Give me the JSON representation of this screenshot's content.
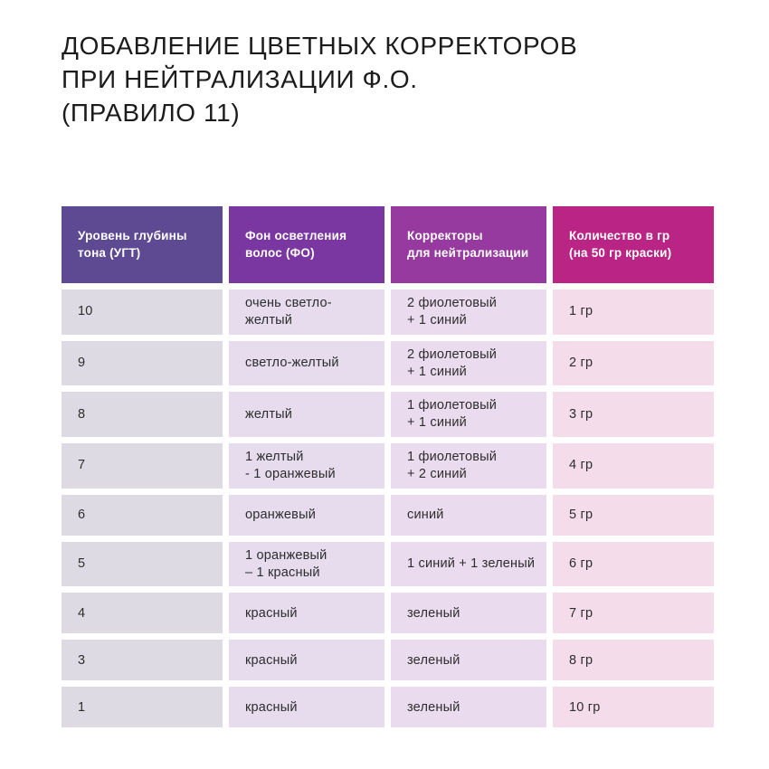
{
  "title": {
    "lines": [
      "ДОБАВЛЕНИЕ ЦВЕТНЫХ КОРРЕКТОРОВ",
      "ПРИ НЕЙТРАЛИЗАЦИИ Ф.О.",
      "(ПРАВИЛО 11)"
    ]
  },
  "table": {
    "columns": [
      {
        "label": "Уровень глубины\nтона (УГТ)",
        "header_bg": "#5d4a93",
        "cell_bg": "#dedae3"
      },
      {
        "label": "Фон осветления\nволос (ФО)",
        "header_bg": "#7b37a1",
        "cell_bg": "#e6dcee"
      },
      {
        "label": "Корректоры\nдля нейтрализации",
        "header_bg": "#973a9f",
        "cell_bg": "#eadcee"
      },
      {
        "label": "Количество в гр\n(на 50 гр краски)",
        "header_bg": "#ba2585",
        "cell_bg": "#f4dcea"
      }
    ],
    "rows": [
      {
        "cells": [
          "10",
          "очень светло-желтый",
          "2 фиолетовый\n+ 1 синий",
          "1 гр"
        ]
      },
      {
        "cells": [
          "9",
          "светло-желтый",
          "2 фиолетовый\n+ 1 синий",
          "2 гр"
        ]
      },
      {
        "cells": [
          "8",
          "желтый",
          "1 фиолетовый\n+ 1 синий",
          "3 гр"
        ]
      },
      {
        "cells": [
          "7",
          "1 желтый\n- 1 оранжевый",
          "1 фиолетовый\n+ 2 синий",
          "4 гр"
        ]
      },
      {
        "cells": [
          "6",
          "оранжевый",
          "синий",
          "5 гр"
        ]
      },
      {
        "cells": [
          "5",
          "1 оранжевый\n– 1 красный",
          "1 синий + 1 зеленый",
          "6 гр"
        ]
      },
      {
        "cells": [
          "4",
          "красный",
          "зеленый",
          "7 гр"
        ]
      },
      {
        "cells": [
          "3",
          "красный",
          "зеленый",
          "8 гр"
        ]
      },
      {
        "cells": [
          "1",
          "красный",
          "зеленый",
          "10 гр"
        ]
      }
    ]
  }
}
